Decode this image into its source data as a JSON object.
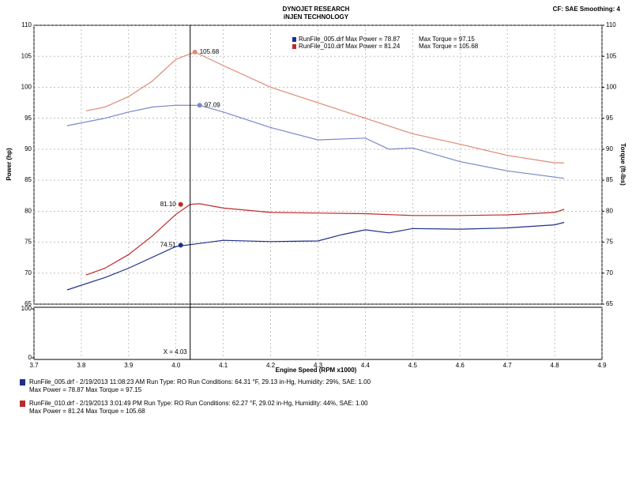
{
  "header": {
    "title": "DYNOJET RESEARCH",
    "subtitle": "iNJEN TECHNOLOGY",
    "settings": "CF: SAE  Smoothing: 4"
  },
  "chart_data": {
    "type": "line",
    "ylabel": "Power (hp)",
    "y2label": "Torque (ft-lbs)",
    "xlabel": "Engine Speed (RPM x1000)",
    "xlim": [
      3.7,
      4.9
    ],
    "xticks": [
      3.7,
      3.8,
      3.9,
      {
        "value": 4,
        "label": "4.0"
      },
      4.1,
      4.2,
      4.3,
      4.4,
      4.5,
      4.6,
      4.7,
      4.8,
      4.9
    ],
    "ylim": [
      65,
      110
    ],
    "yticks": [
      65,
      70,
      75,
      80,
      85,
      90,
      95,
      100,
      105,
      110
    ],
    "y2lim": [
      65,
      110
    ],
    "y2ticks": [
      65,
      70,
      75,
      80,
      85,
      90,
      95,
      100,
      105,
      110
    ],
    "grid": true,
    "legend": [
      {
        "text": "RunFile_005.drf Max Power = 78.87",
        "extra": "Max Torque = 97.15",
        "color": "#1f2f8a"
      },
      {
        "text": "RunFile_010.drf Max Power = 81.24",
        "extra": "Max Torque = 105.68",
        "color": "#c0282a"
      }
    ],
    "series": [
      {
        "color": "#e08878",
        "axis": "y2",
        "x": [
          3.81,
          3.85,
          3.9,
          3.95,
          4.0,
          4.04,
          4.1,
          4.2,
          4.3,
          4.4,
          4.5,
          4.6,
          4.7,
          4.8,
          4.82
        ],
        "values": [
          96.2,
          96.8,
          98.5,
          101,
          104.5,
          105.68,
          103.5,
          100,
          97.5,
          95,
          92.5,
          90.8,
          89,
          87.8,
          87.8
        ]
      },
      {
        "color": "#7a86c8",
        "axis": "y2",
        "x": [
          3.77,
          3.85,
          3.9,
          3.95,
          4.0,
          4.05,
          4.1,
          4.2,
          4.3,
          4.4,
          4.45,
          4.5,
          4.6,
          4.7,
          4.8,
          4.82
        ],
        "values": [
          93.8,
          95,
          96,
          96.8,
          97.1,
          97.09,
          96,
          93.5,
          91.5,
          91.8,
          90,
          90.2,
          88,
          86.5,
          85.5,
          85.3
        ]
      },
      {
        "color": "#c0282a",
        "x": [
          3.81,
          3.85,
          3.9,
          3.95,
          4.0,
          4.03,
          4.05,
          4.1,
          4.2,
          4.3,
          4.4,
          4.5,
          4.6,
          4.7,
          4.8,
          4.82
        ],
        "values": [
          69.7,
          70.8,
          73,
          76,
          79.5,
          81.1,
          81.2,
          80.5,
          79.8,
          79.7,
          79.6,
          79.3,
          79.3,
          79.4,
          79.8,
          80.3
        ]
      },
      {
        "color": "#1f2f8a",
        "x": [
          3.77,
          3.85,
          3.9,
          4.0,
          4.1,
          4.2,
          4.3,
          4.35,
          4.4,
          4.45,
          4.5,
          4.6,
          4.7,
          4.8,
          4.82
        ],
        "values": [
          67.3,
          69.3,
          70.8,
          74.3,
          75.3,
          75.1,
          75.2,
          76.2,
          77,
          76.5,
          77.2,
          77.1,
          77.3,
          77.8,
          78.2
        ]
      }
    ],
    "markers": [
      {
        "x": 4.04,
        "y": 105.68,
        "label": "105.68",
        "color": "#e08878",
        "side": "right"
      },
      {
        "x": 4.05,
        "y": 97.09,
        "label": "97.09",
        "color": "#7a86c8",
        "side": "right"
      },
      {
        "x": 4.01,
        "y": 81.1,
        "label": "81.10",
        "color": "#c0282a",
        "side": "left"
      },
      {
        "x": 4.01,
        "y": 74.51,
        "label": "74.51",
        "color": "#1f2f8a",
        "side": "left"
      }
    ],
    "cursor": {
      "x": 4.03,
      "label": "X = 4.03"
    },
    "lower_ylim": [
      0,
      100
    ],
    "lower_yticks": [
      0,
      100
    ]
  },
  "runs": [
    {
      "color": "#1f2f8a",
      "line1": "RunFile_005.drf - 2/19/2013 11:08:23 AM  Run Type: RO  Run Conditions: 64.31 °F, 29.13 in-Hg,  Humidity:  29%, SAE: 1.00",
      "line2": "Max Power = 78.87  Max Torque = 97.15"
    },
    {
      "color": "#c0282a",
      "line1": "RunFile_010.drf - 2/19/2013 3:01:49 PM  Run Type: RO  Run Conditions: 62.27 °F, 29.02 in-Hg,  Humidity:  44%, SAE: 1.00",
      "line2": "Max Power = 81.24  Max Torque = 105.68"
    }
  ]
}
